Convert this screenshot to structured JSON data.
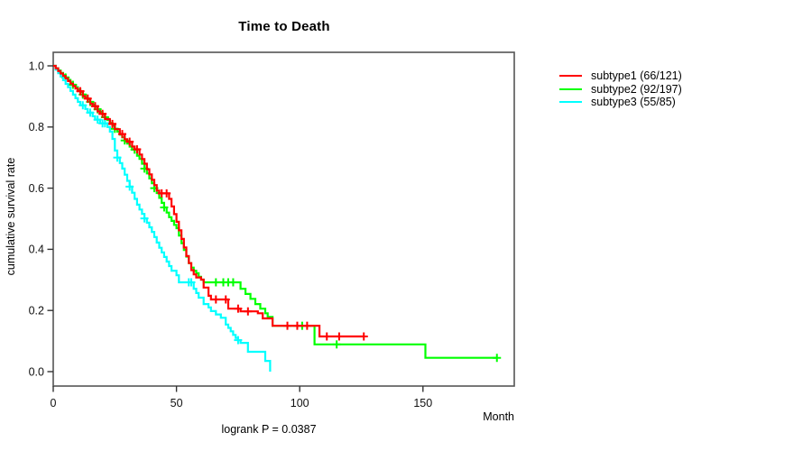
{
  "chart_data": {
    "type": "line",
    "subtype": "kaplan-meier-step-curves",
    "title": "Time to Death",
    "xlabel": "Month",
    "ylabel": "cumulative survival rate",
    "annotation": "logrank P = 0.0387",
    "xlim": [
      0,
      187
    ],
    "ylim": [
      0.0,
      1.0
    ],
    "x_ticks": [
      0,
      50,
      100,
      150
    ],
    "y_ticks": [
      0.0,
      0.2,
      0.4,
      0.6,
      0.8,
      1.0
    ],
    "grid": false,
    "legend_position": "outside-right",
    "axis_color": "#555555",
    "series": [
      {
        "name": "subtype1",
        "label": "subtype1 (66/121)",
        "events": 66,
        "n": 121,
        "color": "#ff0000",
        "end_month": 126,
        "steps": [
          [
            0,
            1.0
          ],
          [
            1,
            0.992
          ],
          [
            2,
            0.983
          ],
          [
            3,
            0.975
          ],
          [
            4,
            0.967
          ],
          [
            5,
            0.959
          ],
          [
            6,
            0.95
          ],
          [
            7,
            0.942
          ],
          [
            8,
            0.934
          ],
          [
            9,
            0.926
          ],
          [
            10,
            0.917
          ],
          [
            12,
            0.901
          ],
          [
            13,
            0.893
          ],
          [
            15,
            0.876
          ],
          [
            16,
            0.868
          ],
          [
            18,
            0.851
          ],
          [
            19,
            0.843
          ],
          [
            21,
            0.826
          ],
          [
            23,
            0.81
          ],
          [
            25,
            0.793
          ],
          [
            27,
            0.777
          ],
          [
            29,
            0.76
          ],
          [
            30,
            0.752
          ],
          [
            32,
            0.736
          ],
          [
            33,
            0.727
          ],
          [
            35,
            0.71
          ],
          [
            36,
            0.695
          ],
          [
            37,
            0.68
          ],
          [
            38,
            0.662
          ],
          [
            39,
            0.645
          ],
          [
            40,
            0.627
          ],
          [
            41,
            0.61
          ],
          [
            42,
            0.592
          ],
          [
            43,
            0.583
          ],
          [
            47,
            0.565
          ],
          [
            48,
            0.54
          ],
          [
            49,
            0.515
          ],
          [
            50,
            0.49
          ],
          [
            51,
            0.462
          ],
          [
            52,
            0.434
          ],
          [
            53,
            0.406
          ],
          [
            54,
            0.378
          ],
          [
            55,
            0.355
          ],
          [
            56,
            0.332
          ],
          [
            57,
            0.318
          ],
          [
            58,
            0.308
          ],
          [
            60,
            0.301
          ],
          [
            61,
            0.275
          ],
          [
            63,
            0.248
          ],
          [
            64,
            0.236
          ],
          [
            71,
            0.206
          ],
          [
            76,
            0.197
          ],
          [
            83,
            0.191
          ],
          [
            85,
            0.174
          ],
          [
            89,
            0.15
          ],
          [
            108,
            0.115
          ]
        ],
        "censors": [
          [
            11,
            0.917
          ],
          [
            14,
            0.893
          ],
          [
            17,
            0.868
          ],
          [
            20,
            0.843
          ],
          [
            24,
            0.81
          ],
          [
            28,
            0.777
          ],
          [
            31,
            0.752
          ],
          [
            34,
            0.727
          ],
          [
            44,
            0.583
          ],
          [
            46,
            0.583
          ],
          [
            66,
            0.236
          ],
          [
            70,
            0.236
          ],
          [
            75,
            0.206
          ],
          [
            79,
            0.197
          ],
          [
            95,
            0.15
          ],
          [
            99,
            0.15
          ],
          [
            103,
            0.15
          ],
          [
            111,
            0.115
          ],
          [
            116,
            0.115
          ],
          [
            126,
            0.115
          ]
        ]
      },
      {
        "name": "subtype2",
        "label": "subtype2 (92/197)",
        "events": 92,
        "n": 197,
        "color": "#00ff00",
        "end_month": 180,
        "steps": [
          [
            0,
            1.0
          ],
          [
            1,
            0.992
          ],
          [
            2,
            0.985
          ],
          [
            3,
            0.977
          ],
          [
            4,
            0.97
          ],
          [
            5,
            0.962
          ],
          [
            6,
            0.954
          ],
          [
            7,
            0.946
          ],
          [
            8,
            0.938
          ],
          [
            9,
            0.93
          ],
          [
            10,
            0.922
          ],
          [
            11,
            0.914
          ],
          [
            12,
            0.906
          ],
          [
            13,
            0.898
          ],
          [
            14,
            0.89
          ],
          [
            15,
            0.882
          ],
          [
            16,
            0.874
          ],
          [
            17,
            0.866
          ],
          [
            18,
            0.858
          ],
          [
            19,
            0.85
          ],
          [
            20,
            0.841
          ],
          [
            21,
            0.832
          ],
          [
            22,
            0.823
          ],
          [
            23,
            0.813
          ],
          [
            24,
            0.804
          ],
          [
            25,
            0.794
          ],
          [
            26,
            0.785
          ],
          [
            27,
            0.775
          ],
          [
            28,
            0.766
          ],
          [
            29,
            0.756
          ],
          [
            30,
            0.746
          ],
          [
            31,
            0.736
          ],
          [
            32,
            0.726
          ],
          [
            34,
            0.706
          ],
          [
            35,
            0.696
          ],
          [
            36,
            0.68
          ],
          [
            37,
            0.664
          ],
          [
            38,
            0.648
          ],
          [
            39,
            0.632
          ],
          [
            40,
            0.616
          ],
          [
            41,
            0.6
          ],
          [
            42,
            0.584
          ],
          [
            43,
            0.568
          ],
          [
            44,
            0.552
          ],
          [
            45,
            0.537
          ],
          [
            46,
            0.52
          ],
          [
            47,
            0.505
          ],
          [
            48,
            0.493
          ],
          [
            49,
            0.48
          ],
          [
            50,
            0.469
          ],
          [
            51,
            0.445
          ],
          [
            52,
            0.42
          ],
          [
            53,
            0.398
          ],
          [
            54,
            0.376
          ],
          [
            55,
            0.355
          ],
          [
            56,
            0.34
          ],
          [
            57,
            0.33
          ],
          [
            58,
            0.322
          ],
          [
            59,
            0.31
          ],
          [
            60,
            0.301
          ],
          [
            61,
            0.292
          ],
          [
            76,
            0.271
          ],
          [
            78,
            0.254
          ],
          [
            80,
            0.238
          ],
          [
            82,
            0.221
          ],
          [
            84,
            0.206
          ],
          [
            86,
            0.191
          ],
          [
            87,
            0.179
          ],
          [
            89,
            0.15
          ],
          [
            106,
            0.089
          ],
          [
            151,
            0.045
          ]
        ],
        "censors": [
          [
            5,
            0.962
          ],
          [
            8,
            0.938
          ],
          [
            12,
            0.906
          ],
          [
            15,
            0.882
          ],
          [
            18,
            0.858
          ],
          [
            21,
            0.832
          ],
          [
            25,
            0.794
          ],
          [
            29,
            0.756
          ],
          [
            33,
            0.726
          ],
          [
            37,
            0.664
          ],
          [
            41,
            0.6
          ],
          [
            45,
            0.537
          ],
          [
            66,
            0.292
          ],
          [
            69,
            0.292
          ],
          [
            71,
            0.292
          ],
          [
            73,
            0.292
          ],
          [
            101,
            0.15
          ],
          [
            115,
            0.089
          ],
          [
            180,
            0.045
          ]
        ]
      },
      {
        "name": "subtype3",
        "label": "subtype3 (55/85)",
        "events": 55,
        "n": 85,
        "color": "#00ffff",
        "end_month": 88,
        "steps": [
          [
            0,
            1.0
          ],
          [
            1,
            0.988
          ],
          [
            2,
            0.976
          ],
          [
            3,
            0.965
          ],
          [
            4,
            0.953
          ],
          [
            5,
            0.941
          ],
          [
            6,
            0.93
          ],
          [
            7,
            0.918
          ],
          [
            8,
            0.906
          ],
          [
            9,
            0.894
          ],
          [
            10,
            0.882
          ],
          [
            11,
            0.871
          ],
          [
            13,
            0.859
          ],
          [
            14,
            0.847
          ],
          [
            16,
            0.835
          ],
          [
            17,
            0.824
          ],
          [
            19,
            0.812
          ],
          [
            22,
            0.8
          ],
          [
            23,
            0.785
          ],
          [
            24,
            0.761
          ],
          [
            25,
            0.723
          ],
          [
            26,
            0.7
          ],
          [
            27,
            0.682
          ],
          [
            28,
            0.664
          ],
          [
            29,
            0.644
          ],
          [
            30,
            0.624
          ],
          [
            31,
            0.605
          ],
          [
            32,
            0.585
          ],
          [
            33,
            0.565
          ],
          [
            34,
            0.546
          ],
          [
            35,
            0.53
          ],
          [
            36,
            0.516
          ],
          [
            37,
            0.501
          ],
          [
            38,
            0.487
          ],
          [
            39,
            0.472
          ],
          [
            40,
            0.457
          ],
          [
            41,
            0.44
          ],
          [
            42,
            0.422
          ],
          [
            43,
            0.405
          ],
          [
            44,
            0.39
          ],
          [
            45,
            0.375
          ],
          [
            46,
            0.36
          ],
          [
            47,
            0.345
          ],
          [
            48,
            0.33
          ],
          [
            50,
            0.315
          ],
          [
            51,
            0.292
          ],
          [
            57,
            0.271
          ],
          [
            58,
            0.257
          ],
          [
            59,
            0.242
          ],
          [
            61,
            0.221
          ],
          [
            63,
            0.21
          ],
          [
            64,
            0.198
          ],
          [
            66,
            0.187
          ],
          [
            68,
            0.176
          ],
          [
            70,
            0.154
          ],
          [
            71,
            0.143
          ],
          [
            72,
            0.132
          ],
          [
            73,
            0.12
          ],
          [
            74,
            0.11
          ],
          [
            75,
            0.103
          ],
          [
            76,
            0.094
          ],
          [
            79,
            0.065
          ],
          [
            86,
            0.035
          ],
          [
            88,
            0.0
          ]
        ],
        "censors": [
          [
            12,
            0.871
          ],
          [
            15,
            0.847
          ],
          [
            18,
            0.824
          ],
          [
            20,
            0.812
          ],
          [
            21,
            0.812
          ],
          [
            26,
            0.7
          ],
          [
            31,
            0.605
          ],
          [
            37,
            0.501
          ],
          [
            55,
            0.292
          ],
          [
            56,
            0.292
          ],
          [
            75,
            0.103
          ]
        ]
      }
    ]
  }
}
